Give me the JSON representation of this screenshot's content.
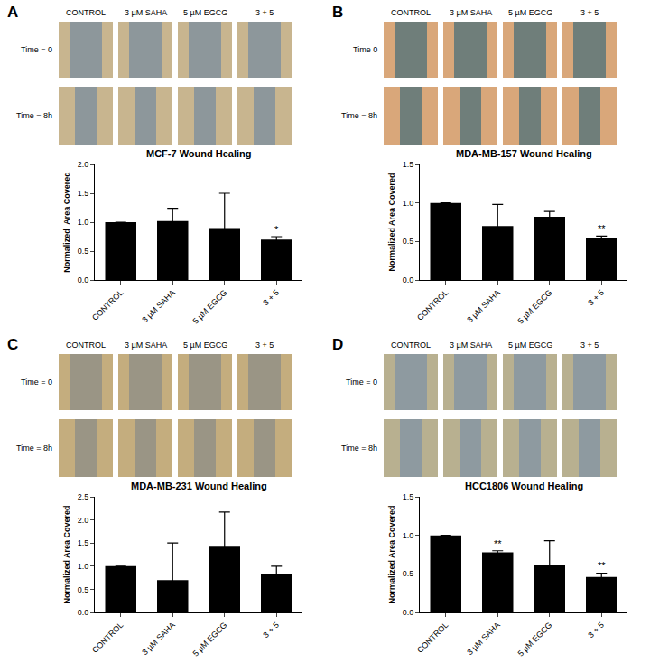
{
  "chart_data": [
    {
      "type": "bar",
      "panel": "A",
      "title": "MCF-7 Wound Healing",
      "y_label": "Normalized  Area Covered",
      "image_columns": [
        "CONTROL",
        "3 µM SAHA",
        "5 µM EGCG",
        "3 + 5"
      ],
      "image_rows": [
        "Time = 0",
        "Time = 8h"
      ],
      "categories": [
        "CONTROL",
        "3 µM SAHA",
        "5 µM EGCG",
        "3 + 5"
      ],
      "values": [
        1.0,
        1.02,
        0.9,
        0.7
      ],
      "errors": [
        0,
        0.22,
        0.6,
        0.05
      ],
      "significance": [
        null,
        null,
        null,
        "*"
      ],
      "color": "#000000",
      "ylim": [
        0,
        2.0
      ],
      "yticks": [
        {
          "value": 0,
          "label": "0.0"
        },
        {
          "value": 0.5,
          "label": "0.5"
        },
        {
          "value": 1,
          "label": "1.0"
        },
        {
          "value": 1.5,
          "label": "1.5"
        },
        {
          "value": 2,
          "label": "2.0"
        }
      ],
      "grid": false
    },
    {
      "type": "bar",
      "panel": "B",
      "title": "MDA-MB-157 Wound Healing",
      "y_label": "Normalized Area Covered",
      "image_columns": [
        "CONTROL",
        "3 µM SAHA",
        "5 µM EGCG",
        "3 + 5"
      ],
      "image_rows": [
        "Time 0",
        "Time = 8h"
      ],
      "categories": [
        "CONTROL",
        "3 µM SAHA",
        "5 µM EGCG",
        "3 + 5"
      ],
      "values": [
        1.0,
        0.7,
        0.82,
        0.55
      ],
      "errors": [
        0,
        0.28,
        0.07,
        0.02
      ],
      "significance": [
        null,
        null,
        null,
        "**"
      ],
      "color": "#000000",
      "ylim": [
        0,
        1.5
      ],
      "yticks": [
        {
          "value": 0,
          "label": "0.0"
        },
        {
          "value": 0.5,
          "label": "0.5"
        },
        {
          "value": 1,
          "label": "1.0"
        },
        {
          "value": 1.5,
          "label": "1.5"
        }
      ],
      "grid": false
    },
    {
      "type": "bar",
      "panel": "C",
      "title": "MDA-MB-231 Wound Healing",
      "y_label": "Normalized Area Covered",
      "image_columns": [
        "CONTROL",
        "3 µM SAHA",
        "5 µM EGCG",
        "3 + 5"
      ],
      "image_rows": [
        "Time = 0",
        "Time = 8h"
      ],
      "categories": [
        "CONTROL",
        "3 µM SAHA",
        "5 µM EGCG",
        "3 + 5"
      ],
      "values": [
        1.0,
        0.7,
        1.42,
        0.82
      ],
      "errors": [
        0,
        0.8,
        0.75,
        0.18
      ],
      "significance": [
        null,
        null,
        null,
        null
      ],
      "color": "#000000",
      "ylim": [
        0,
        2.5
      ],
      "yticks": [
        {
          "value": 0,
          "label": "0.0"
        },
        {
          "value": 0.5,
          "label": "0.5"
        },
        {
          "value": 1,
          "label": "1.0"
        },
        {
          "value": 1.5,
          "label": "1.5"
        },
        {
          "value": 2,
          "label": "2.0"
        },
        {
          "value": 2.5,
          "label": "2.5"
        }
      ],
      "grid": false
    },
    {
      "type": "bar",
      "panel": "D",
      "title": "HCC1806 Wound Healing",
      "y_label": "Normalized Area Covered",
      "image_columns": [
        "CONTROL",
        "3 µM SAHA",
        "5 µM EGCG",
        "3 + 5"
      ],
      "image_rows": [
        "Time = 0",
        "Time = 8h"
      ],
      "categories": [
        "CONTROL",
        "3 µM SAHA",
        "5 µM EGCG",
        "3 + 5"
      ],
      "values": [
        1.0,
        0.78,
        0.62,
        0.46
      ],
      "errors": [
        0,
        0.02,
        0.31,
        0.05
      ],
      "significance": [
        null,
        "**",
        null,
        "**"
      ],
      "color": "#000000",
      "ylim": [
        0,
        1.5
      ],
      "yticks": [
        {
          "value": 0,
          "label": "0.0"
        },
        {
          "value": 0.5,
          "label": "0.5"
        },
        {
          "value": 1,
          "label": "1.0"
        },
        {
          "value": 1.5,
          "label": "1.5"
        }
      ],
      "grid": false
    }
  ]
}
